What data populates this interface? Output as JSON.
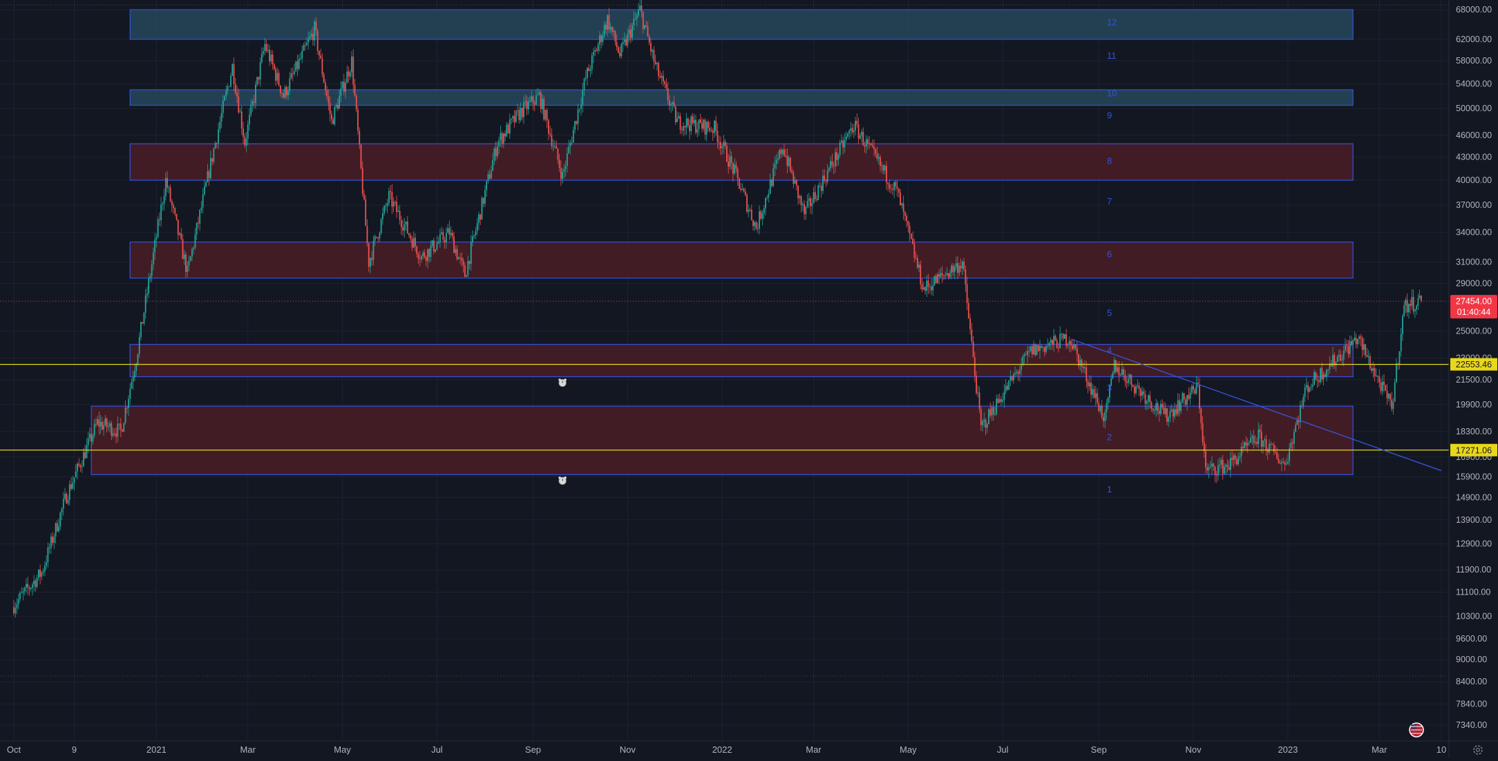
{
  "chart_data": {
    "type": "candlestick",
    "scale": "log",
    "grid": true,
    "legend": "none",
    "colors": {
      "background": "#131722",
      "grid": "#1e2230",
      "axis_text": "#b2b5be",
      "up": "#26a69a",
      "down": "#ef5350",
      "zone_red_fill": "#4a1d26",
      "zone_teal_fill": "#27485a",
      "zone_border": "#2f4fd8",
      "level_label": "#2e55e0",
      "horizontal_line": "#e8d71a",
      "trendline": "#3553d6",
      "price_tag": "#f23645"
    },
    "y_ticks": [
      "68000.00",
      "62000.00",
      "58000.00",
      "54000.00",
      "50000.00",
      "46000.00",
      "43000.00",
      "40000.00",
      "37000.00",
      "34000.00",
      "31000.00",
      "29000.00",
      "25000.00",
      "23000.00",
      "21500.00",
      "19900.00",
      "18300.00",
      "16900.00",
      "15900.00",
      "14900.00",
      "13900.00",
      "12900.00",
      "11900.00",
      "11100.00",
      "10300.00",
      "9600.00",
      "9000.00",
      "8400.00",
      "7840.00",
      "7340.00"
    ],
    "x_ticks": [
      {
        "label": "Oct",
        "date": "2020-10-01"
      },
      {
        "label": "9",
        "date": "2020-11-09"
      },
      {
        "label": "2021",
        "date": "2021-01-01"
      },
      {
        "label": "Mar",
        "date": "2021-03-01"
      },
      {
        "label": "May",
        "date": "2021-05-01"
      },
      {
        "label": "Jul",
        "date": "2021-07-01"
      },
      {
        "label": "Sep",
        "date": "2021-09-01"
      },
      {
        "label": "Nov",
        "date": "2021-11-01"
      },
      {
        "label": "2022",
        "date": "2022-01-01"
      },
      {
        "label": "Mar",
        "date": "2022-03-01"
      },
      {
        "label": "May",
        "date": "2022-05-01"
      },
      {
        "label": "Jul",
        "date": "2022-07-01"
      },
      {
        "label": "Sep",
        "date": "2022-09-01"
      },
      {
        "label": "Nov",
        "date": "2022-11-01"
      },
      {
        "label": "2023",
        "date": "2023-01-01"
      },
      {
        "label": "Mar",
        "date": "2023-03-01"
      },
      {
        "label": "10",
        "date": "2023-04-10"
      }
    ],
    "price_path": [
      [
        "2020-10-01",
        10600
      ],
      [
        "2020-10-20",
        11800
      ],
      [
        "2020-11-05",
        15000
      ],
      [
        "2020-11-25",
        18800
      ],
      [
        "2020-12-10",
        18300
      ],
      [
        "2020-12-20",
        23000
      ],
      [
        "2021-01-08",
        40000
      ],
      [
        "2021-01-22",
        30000
      ],
      [
        "2021-02-08",
        44000
      ],
      [
        "2021-02-20",
        57000
      ],
      [
        "2021-02-28",
        45000
      ],
      [
        "2021-03-13",
        61000
      ],
      [
        "2021-03-25",
        52000
      ],
      [
        "2021-04-14",
        64000
      ],
      [
        "2021-04-25",
        48000
      ],
      [
        "2021-05-08",
        58000
      ],
      [
        "2021-05-19",
        31000
      ],
      [
        "2021-06-01",
        38000
      ],
      [
        "2021-06-22",
        31500
      ],
      [
        "2021-07-10",
        34000
      ],
      [
        "2021-07-20",
        29800
      ],
      [
        "2021-08-10",
        45000
      ],
      [
        "2021-08-25",
        49500
      ],
      [
        "2021-09-06",
        52000
      ],
      [
        "2021-09-21",
        40500
      ],
      [
        "2021-10-06",
        55000
      ],
      [
        "2021-10-20",
        66000
      ],
      [
        "2021-10-28",
        59000
      ],
      [
        "2021-11-10",
        68000
      ],
      [
        "2021-11-20",
        57000
      ],
      [
        "2021-12-04",
        48000
      ],
      [
        "2021-12-28",
        47000
      ],
      [
        "2022-01-10",
        41000
      ],
      [
        "2022-01-24",
        34500
      ],
      [
        "2022-02-10",
        44500
      ],
      [
        "2022-02-24",
        36000
      ],
      [
        "2022-03-28",
        47500
      ],
      [
        "2022-04-25",
        38500
      ],
      [
        "2022-05-12",
        28500
      ],
      [
        "2022-06-06",
        31000
      ],
      [
        "2022-06-18",
        18500
      ],
      [
        "2022-07-20",
        23500
      ],
      [
        "2022-08-14",
        24500
      ],
      [
        "2022-09-06",
        19000
      ],
      [
        "2022-09-12",
        22500
      ],
      [
        "2022-10-15",
        19200
      ],
      [
        "2022-11-05",
        21000
      ],
      [
        "2022-11-10",
        16200
      ],
      [
        "2022-11-25",
        16500
      ],
      [
        "2022-12-14",
        18000
      ],
      [
        "2022-12-31",
        16500
      ],
      [
        "2023-01-14",
        21000
      ],
      [
        "2023-02-16",
        24500
      ],
      [
        "2023-03-10",
        19700
      ],
      [
        "2023-03-18",
        27000
      ],
      [
        "2023-03-28",
        27454
      ]
    ],
    "zones": [
      {
        "label": "12",
        "top": 68000,
        "bottom": 62000,
        "style": "teal",
        "start": "2020-12-15",
        "end": "2023-02-12"
      },
      {
        "label": "10",
        "top": 53000,
        "bottom": 50500,
        "style": "teal",
        "start": "2020-12-15",
        "end": "2023-02-12"
      },
      {
        "label": "8",
        "top": 44800,
        "bottom": 40000,
        "style": "red",
        "start": "2020-12-15",
        "end": "2023-02-12"
      },
      {
        "label": "6",
        "top": 33000,
        "bottom": 29500,
        "style": "red",
        "start": "2020-12-15",
        "end": "2023-02-12"
      },
      {
        "label": "4",
        "top": 24000,
        "bottom": 21700,
        "style": "red",
        "start": "2020-12-15",
        "end": "2023-02-12"
      },
      {
        "label": "2",
        "top": 19800,
        "bottom": 16000,
        "style": "red",
        "start": "2020-11-20",
        "end": "2023-02-12"
      }
    ],
    "level_numbers": [
      {
        "label": "12",
        "price": 65500
      },
      {
        "label": "11",
        "price": 59000
      },
      {
        "label": "10",
        "price": 52500
      },
      {
        "label": "9",
        "price": 49000
      },
      {
        "label": "8",
        "price": 42500
      },
      {
        "label": "7",
        "price": 37500
      },
      {
        "label": "6",
        "price": 31800
      },
      {
        "label": "5",
        "price": 26500
      },
      {
        "label": "4",
        "price": 23600
      },
      {
        "label": "3",
        "price": 21000
      },
      {
        "label": "2",
        "price": 18000
      },
      {
        "label": "1",
        "price": 15300
      }
    ],
    "horizontal_lines": [
      {
        "price": 22553.46,
        "label": "22553.46"
      },
      {
        "price": 17271.06,
        "label": "17271.06"
      }
    ],
    "alarm_markers": [
      {
        "date": "2021-09-20",
        "price": 21700
      },
      {
        "date": "2021-09-20",
        "price": 16000
      }
    ],
    "trendline": {
      "start_date": "2022-08-14",
      "start_price": 24400,
      "end_date": "2023-04-10",
      "end_price": 16200
    },
    "current_price": {
      "label": "27454.00",
      "countdown": "01:40:44",
      "price": 27454
    }
  }
}
